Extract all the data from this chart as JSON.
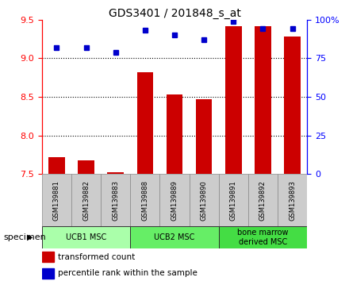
{
  "title": "GDS3401 / 201848_s_at",
  "samples": [
    "GSM139881",
    "GSM139882",
    "GSM139883",
    "GSM139888",
    "GSM139889",
    "GSM139890",
    "GSM139891",
    "GSM139892",
    "GSM139893"
  ],
  "bar_values": [
    7.72,
    7.68,
    7.53,
    8.82,
    8.53,
    8.47,
    9.42,
    9.42,
    9.28
  ],
  "percentile_values": [
    82,
    82,
    79,
    93,
    90,
    87,
    99,
    94,
    94
  ],
  "ylim_left": [
    7.5,
    9.5
  ],
  "ylim_right": [
    0,
    100
  ],
  "yticks_left": [
    7.5,
    8.0,
    8.5,
    9.0,
    9.5
  ],
  "yticks_right": [
    0,
    25,
    50,
    75,
    100
  ],
  "bar_color": "#cc0000",
  "dot_color": "#0000cc",
  "groups": [
    {
      "label": "UCB1 MSC",
      "start": 0,
      "end": 3,
      "color": "#aaffaa"
    },
    {
      "label": "UCB2 MSC",
      "start": 3,
      "end": 6,
      "color": "#66ee66"
    },
    {
      "label": "bone marrow\nderived MSC",
      "start": 6,
      "end": 9,
      "color": "#44dd44"
    }
  ],
  "specimen_label": "specimen",
  "legend_bar_label": "transformed count",
  "legend_dot_label": "percentile rank within the sample",
  "background_color": "#ffffff",
  "sample_box_color": "#cccccc",
  "grid_yticks": [
    8.0,
    8.5,
    9.0
  ]
}
